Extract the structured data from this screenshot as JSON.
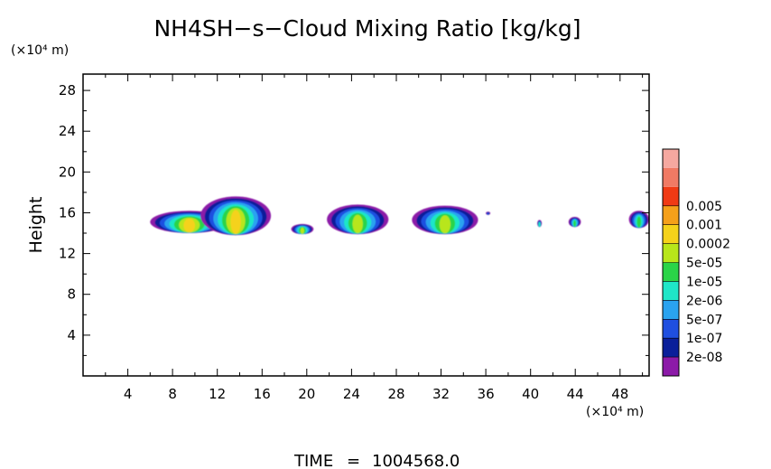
{
  "chart_data": {
    "type": "heatmap",
    "title": "NH4SH−s−Cloud Mixing Ratio [kg/kg]",
    "ylabel": "Height",
    "x_unit_label": "(×10⁴ m)",
    "y_unit_label": "(×10⁴ m)",
    "xlim": [
      0,
      50.6
    ],
    "ylim": [
      0,
      29.6
    ],
    "x_ticks": [
      4,
      8,
      12,
      16,
      20,
      24,
      28,
      32,
      36,
      40,
      44,
      48
    ],
    "y_ticks": [
      4,
      8,
      12,
      16,
      20,
      24,
      28
    ],
    "colorbar": {
      "levels": [
        "2e-08",
        "1e-07",
        "5e-07",
        "2e-06",
        "1e-05",
        "5e-05",
        "0.0002",
        "0.001",
        "0.005"
      ],
      "colors": [
        "#8c1aa8",
        "#0a1f9a",
        "#1f4fe0",
        "#2aa3f0",
        "#1fe6c8",
        "#2ad448",
        "#b8e61a",
        "#f5d21a",
        "#f5a01a",
        "#f03a14",
        "#f07a64",
        "#f5a8a0"
      ]
    },
    "cloud_regions": [
      {
        "x": [
          6.0,
          13.0
        ],
        "y": [
          14.0,
          16.2
        ],
        "peak": "0.0002"
      },
      {
        "x": [
          10.5,
          16.8
        ],
        "y": [
          13.8,
          17.6
        ],
        "peak": "0.0002"
      },
      {
        "x": [
          18.6,
          20.6
        ],
        "y": [
          13.9,
          14.9
        ],
        "peak": "5e-05"
      },
      {
        "x": [
          21.8,
          27.3
        ],
        "y": [
          13.9,
          16.8
        ],
        "peak": "5e-05"
      },
      {
        "x": [
          29.4,
          35.3
        ],
        "y": [
          13.9,
          16.7
        ],
        "peak": "5e-05"
      },
      {
        "x": [
          36.0,
          36.4
        ],
        "y": [
          15.8,
          16.1
        ],
        "peak": "1e-07"
      },
      {
        "x": [
          40.6,
          41.0
        ],
        "y": [
          14.6,
          15.3
        ],
        "peak": "2e-06"
      },
      {
        "x": [
          43.4,
          44.5
        ],
        "y": [
          14.6,
          15.6
        ],
        "peak": "1e-05"
      },
      {
        "x": [
          48.8,
          50.6
        ],
        "y": [
          14.5,
          16.2
        ],
        "peak": "1e-05"
      }
    ],
    "grid": false,
    "legend_position": "right"
  },
  "footer": {
    "time_label": "TIME",
    "time_eq": "=",
    "time_value": "1004568.0"
  }
}
